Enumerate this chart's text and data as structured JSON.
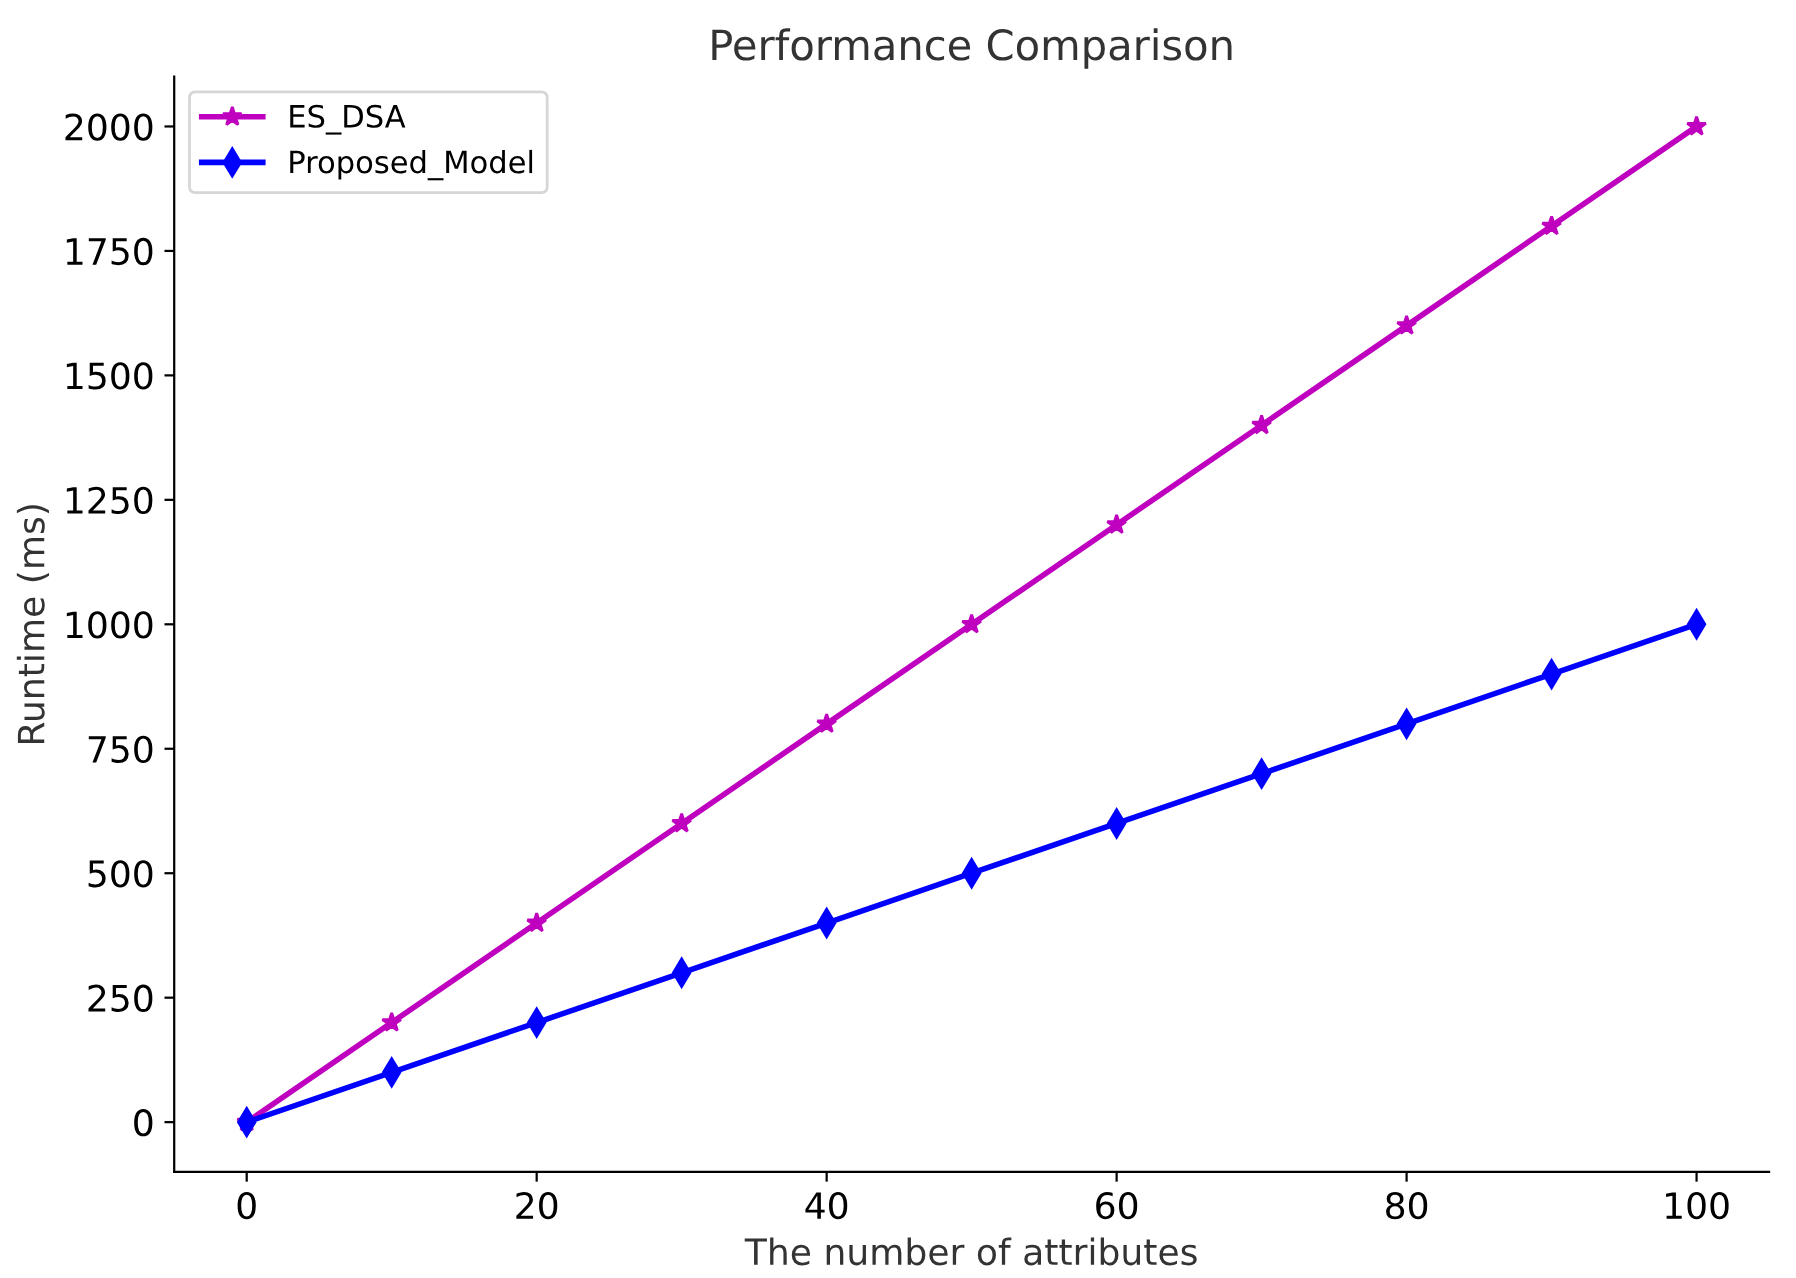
{
  "chart_data": {
    "type": "line",
    "title": "Performance Comparison",
    "xlabel": "The number of attributes",
    "ylabel": "Runtime (ms)",
    "x": [
      0,
      10,
      20,
      30,
      40,
      50,
      60,
      70,
      80,
      90,
      100
    ],
    "series": [
      {
        "name": "ES_DSA",
        "color": "#bf00bf",
        "marker": "star",
        "values": [
          0,
          200,
          400,
          600,
          800,
          1000,
          1200,
          1400,
          1600,
          1800,
          2000
        ]
      },
      {
        "name": "Proposed_Model",
        "color": "#0000ff",
        "marker": "diamond",
        "values": [
          0,
          100,
          200,
          300,
          400,
          500,
          600,
          700,
          800,
          900,
          1000
        ]
      }
    ],
    "xlim": [
      -5,
      105
    ],
    "xticks": [
      0,
      20,
      40,
      60,
      80,
      100
    ],
    "ylim": [
      -100,
      2100
    ],
    "yticks": [
      0,
      250,
      500,
      750,
      1000,
      1250,
      1500,
      1750,
      2000
    ],
    "grid": false,
    "legend": "top left",
    "line_style": "solid"
  }
}
